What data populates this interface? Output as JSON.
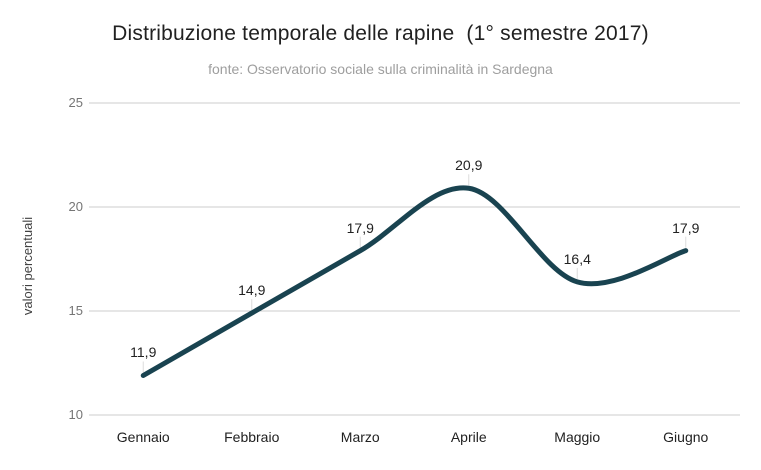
{
  "chart_data": {
    "type": "line",
    "title": "Distribuzione temporale delle rapine  (1° semestre 2017)",
    "subtitle": "fonte: Osservatorio sociale sulla criminalità in Sardegna",
    "ylabel": "valori percentuali",
    "xlabel": "",
    "categories": [
      "Gennaio",
      "Febbraio",
      "Marzo",
      "Aprile",
      "Maggio",
      "Giugno"
    ],
    "values": [
      11.9,
      14.9,
      17.9,
      20.9,
      16.4,
      17.9
    ],
    "values_display": [
      "11,9",
      "14,9",
      "17,9",
      "20,9",
      "16,4",
      "17,9"
    ],
    "ylim": [
      10,
      25
    ],
    "yticks": [
      10,
      15,
      20,
      25
    ],
    "ytick_labels": [
      "10",
      "15",
      "20",
      "25"
    ],
    "grid": "horizontal only",
    "legend": "none",
    "line_style": "smooth spline with data labels above points",
    "colors": {
      "line": "#194350",
      "grid": "#cccccc",
      "leader_line": "#dcdcdc",
      "title_text": "#212121",
      "subtitle_text": "#9e9e9e",
      "y_tick_text": "#757575",
      "x_tick_text": "#212121",
      "data_label_text": "#212121",
      "background": "#ffffff"
    }
  }
}
